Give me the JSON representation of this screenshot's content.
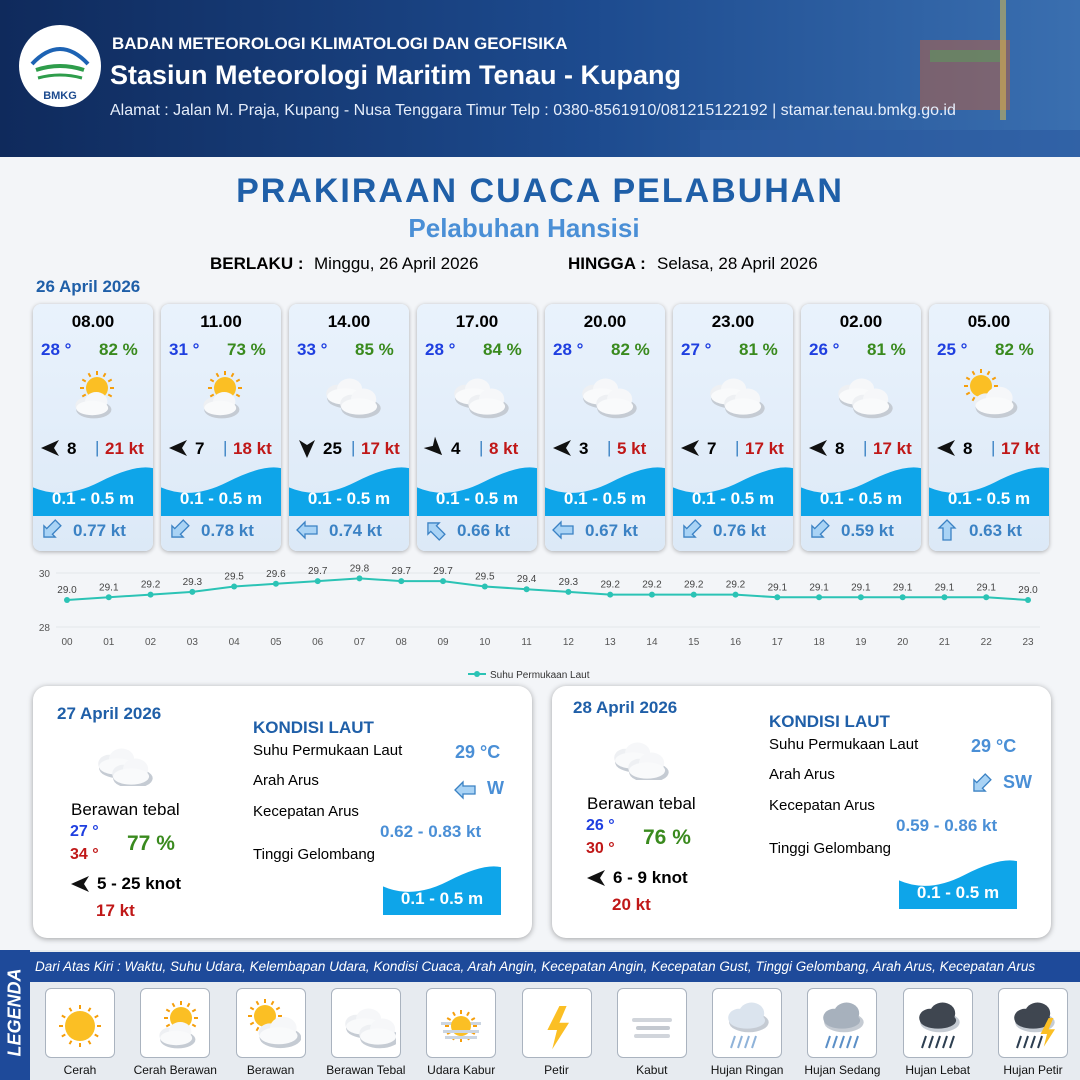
{
  "header": {
    "logo": "BMKG",
    "agency": "BADAN METEOROLOGI KLIMATOLOGI DAN GEOFISIKA",
    "station": "Stasiun Meteorologi Maritim Tenau - Kupang",
    "address": "Alamat : Jalan M. Praja, Kupang - Nusa Tenggara Timur Telp : 0380-8561910/081215122192  | stamar.tenau.bmkg.go.id"
  },
  "title": "PRAKIRAAN CUACA PELABUHAN",
  "subtitle": "Pelabuhan Hansisi",
  "validity": {
    "from_label": "BERLAKU :",
    "from": "Minggu, 26 April 2026",
    "to_label": "HINGGA :",
    "to": "Selasa, 28 April 2026"
  },
  "today": {
    "date": "26 April 2026",
    "cards": [
      {
        "time": "08.00",
        "temp": "28 °",
        "humidity": "82 %",
        "wind": "8",
        "gust": "21 kt",
        "wave": "0.1 - 0.5 m",
        "current": "0.77 kt"
      },
      {
        "time": "11.00",
        "temp": "31 °",
        "humidity": "73 %",
        "wind": "7",
        "gust": "18 kt",
        "wave": "0.1 - 0.5 m",
        "current": "0.78 kt"
      },
      {
        "time": "14.00",
        "temp": "33 °",
        "humidity": "85 %",
        "wind": "25",
        "gust": "17 kt",
        "wave": "0.1 - 0.5 m",
        "current": "0.74 kt"
      },
      {
        "time": "17.00",
        "temp": "28 °",
        "humidity": "84 %",
        "wind": "4",
        "gust": "8 kt",
        "wave": "0.1 - 0.5 m",
        "current": "0.66 kt"
      },
      {
        "time": "20.00",
        "temp": "28 °",
        "humidity": "82 %",
        "wind": "3",
        "gust": "5 kt",
        "wave": "0.1 - 0.5 m",
        "current": "0.67 kt"
      },
      {
        "time": "23.00",
        "temp": "27 °",
        "humidity": "81 %",
        "wind": "7",
        "gust": "17 kt",
        "wave": "0.1 - 0.5 m",
        "current": "0.76 kt"
      },
      {
        "time": "02.00",
        "temp": "26 °",
        "humidity": "81 %",
        "wind": "8",
        "gust": "17 kt",
        "wave": "0.1 - 0.5 m",
        "current": "0.59 kt"
      },
      {
        "time": "05.00",
        "temp": "25 °",
        "humidity": "82 %",
        "wind": "8",
        "gust": "17 kt",
        "wave": "0.1 - 0.5 m",
        "current": "0.63 kt"
      }
    ]
  },
  "chart_data": {
    "type": "line",
    "categories": [
      "00",
      "01",
      "02",
      "03",
      "04",
      "05",
      "06",
      "07",
      "08",
      "09",
      "10",
      "11",
      "12",
      "13",
      "14",
      "15",
      "16",
      "17",
      "18",
      "19",
      "20",
      "21",
      "22",
      "23"
    ],
    "series": [
      {
        "name": "Suhu Permukaan Laut",
        "color": "#2bc3b5",
        "values": [
          29.0,
          29.1,
          29.2,
          29.3,
          29.5,
          29.6,
          29.7,
          29.8,
          29.7,
          29.7,
          29.5,
          29.4,
          29.3,
          29.2,
          29.2,
          29.2,
          29.2,
          29.1,
          29.1,
          29.1,
          29.1,
          29.1,
          29.1,
          29.0
        ],
        "value_labels": [
          "29.0",
          "29.1",
          "29.2",
          "29.3",
          "29.5",
          "29.6",
          "29.7",
          "29.8",
          "29.7",
          "29.7",
          "29.5",
          "29.4",
          "29.3",
          "29.2",
          "29.2",
          "29.2",
          "29.2",
          "29.1",
          "29.1",
          "29.1",
          "29.1",
          "29.1",
          "29.1",
          "29.0"
        ]
      }
    ],
    "ylim": [
      28,
      30
    ],
    "yticks": [
      28,
      30
    ],
    "grid": true,
    "legend": "bottom"
  },
  "outlook": [
    {
      "date": "27 April 2026",
      "weather": "Berawan tebal",
      "temp_min": "27 °",
      "temp_max": "34 °",
      "humidity": "77 %",
      "wind": "5  - 25 knot",
      "gust": "17 kt",
      "sea_title": "KONDISI LAUT",
      "sst_label": "Suhu Permukaan Laut",
      "sst": "29 °C",
      "current_dir_label": "Arah Arus",
      "current_dir": "W",
      "current_speed_label": "Kecepatan Arus",
      "current_speed": "0.62 - 0.83 kt",
      "wave_label": "Tinggi Gelombang",
      "wave": "0.1 - 0.5 m"
    },
    {
      "date": "28 April 2026",
      "weather": "Berawan tebal",
      "temp_min": "26 °",
      "temp_max": "30 °",
      "humidity": "76 %",
      "wind": "6 - 9 knot",
      "gust": "20 kt",
      "sea_title": "KONDISI LAUT",
      "sst_label": "Suhu Permukaan Laut",
      "sst": "29 °C",
      "current_dir_label": "Arah Arus",
      "current_dir": "SW",
      "current_speed_label": "Kecepatan Arus",
      "current_speed": "0.59 - 0.86 kt",
      "wave_label": "Tinggi Gelombang",
      "wave": "0.1 - 0.5 m"
    }
  ],
  "legend": {
    "title": "LEGENDA",
    "description": "Dari Atas Kiri : Waktu, Suhu Udara, Kelembapan Udara, Kondisi Cuaca, Arah Angin, Kecepatan Angin, Kecepatan Gust, Tinggi Gelombang, Arah Arus, Kecepatan Arus",
    "items": [
      "Cerah",
      "Cerah Berawan",
      "Berawan",
      "Berawan Tebal",
      "Udara Kabur",
      "Petir",
      "Kabut",
      "Hujan Ringan",
      "Hujan Sedang",
      "Hujan Lebat",
      "Hujan Petir"
    ]
  }
}
